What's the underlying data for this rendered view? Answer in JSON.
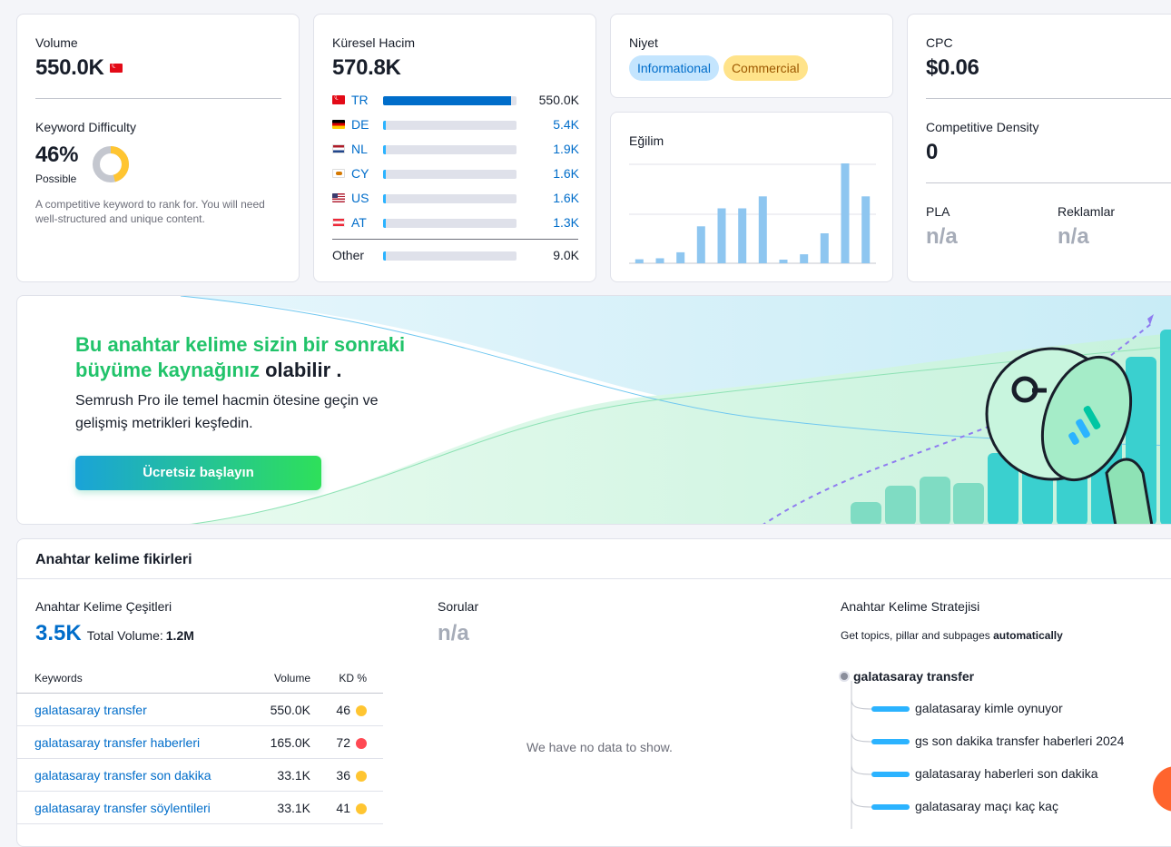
{
  "volume_card": {
    "title": "Volume",
    "value": "550.0K",
    "kd_title": "Keyword Difficulty",
    "kd_value": "46%",
    "kd_label": "Possible",
    "kd_percent": 46,
    "kd_desc": "A competitive keyword to rank for. You will need well-structured and unique content."
  },
  "global_card": {
    "title": "Küresel Hacim",
    "value": "570.8K",
    "countries": [
      {
        "code": "TR",
        "value": "550.0K",
        "share": 0.96
      },
      {
        "code": "DE",
        "value": "5.4K",
        "share": 0.02
      },
      {
        "code": "NL",
        "value": "1.9K",
        "share": 0.02
      },
      {
        "code": "CY",
        "value": "1.6K",
        "share": 0.02
      },
      {
        "code": "US",
        "value": "1.6K",
        "share": 0.02
      },
      {
        "code": "AT",
        "value": "1.3K",
        "share": 0.02
      }
    ],
    "other_label": "Other",
    "other_value": "9.0K"
  },
  "intent_card": {
    "title": "Niyet",
    "tags": [
      "Informational",
      "Commercial"
    ]
  },
  "trend_card": {
    "title": "Eğilim",
    "bars": [
      0.04,
      0.05,
      0.11,
      0.37,
      0.55,
      0.55,
      0.67,
      0.03,
      0.09,
      0.3,
      1.0,
      0.67
    ]
  },
  "cpc_card": {
    "title": "CPC",
    "value": "$0.06",
    "density_title": "Competitive Density",
    "density_value": "0",
    "pla_title": "PLA",
    "pla_value": "n/a",
    "ads_title": "Reklamlar",
    "ads_value": "n/a"
  },
  "banner": {
    "headline_green": "Bu anahtar kelime sizin bir sonraki büyüme kaynağınız",
    "headline_dark": "olabilir .",
    "subtitle": "Semrush Pro ile temel hacmin ötesine geçin ve gelişmiş metrikleri keşfedin.",
    "cta": "Ücretsiz başlayın"
  },
  "ideas": {
    "title": "Anahtar kelime fikirleri",
    "variations_title": "Anahtar Kelime Çeşitleri",
    "variations_count": "3.5K",
    "total_volume_label": "Total Volume:",
    "total_volume_value": "1.2M",
    "table_headers": {
      "keywords": "Keywords",
      "volume": "Volume",
      "kd": "KD %"
    },
    "rows": [
      {
        "keyword": "galatasaray transfer",
        "volume": "550.0K",
        "kd": "46",
        "color": "#ffc531"
      },
      {
        "keyword": "galatasaray transfer haberleri",
        "volume": "165.0K",
        "kd": "72",
        "color": "#ff4953"
      },
      {
        "keyword": "galatasaray transfer son dakika",
        "volume": "33.1K",
        "kd": "36",
        "color": "#ffc531"
      },
      {
        "keyword": "galatasaray transfer söylentileri",
        "volume": "33.1K",
        "kd": "41",
        "color": "#ffc531"
      }
    ],
    "questions_title": "Sorular",
    "questions_value": "n/a",
    "no_data": "We have no data to show.",
    "strategy_title": "Anahtar Kelime Stratejisi",
    "strategy_desc": "Get topics, pillar and subpages",
    "strategy_desc_bold": "automatically",
    "strategy_root": "galatasaray transfer",
    "strategy_items": [
      "galatasaray kimle oynuyor",
      "gs son dakika transfer haberleri 2024",
      "galatasaray haberleri son dakika",
      "galatasaray maçı kaç kaç"
    ]
  }
}
